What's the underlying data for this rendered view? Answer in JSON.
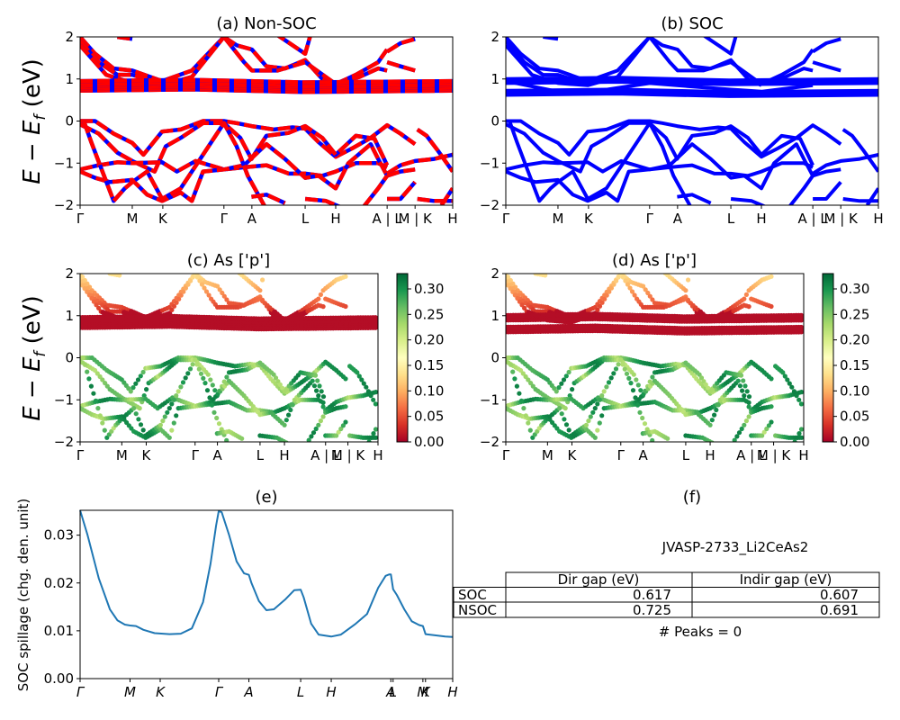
{
  "chart_data": [
    {
      "id": "a",
      "type": "line",
      "title": "(a) Non-SOC",
      "ylabel": "E − E_f (eV)",
      "ylim": [
        -2,
        2
      ],
      "yticks": [
        "2",
        "1",
        "0",
        "−1",
        "−2"
      ],
      "ytick_values": [
        2,
        1,
        0,
        -1,
        -2
      ],
      "xticks": [
        "Γ",
        "M",
        "K",
        "Γ",
        "A",
        "L",
        "H",
        "A | L",
        "M | K",
        "H"
      ],
      "xtick_positions": [
        0,
        0.14,
        0.222,
        0.386,
        0.461,
        0.604,
        0.686,
        0.824,
        0.899,
        1.0
      ],
      "style": "red-blue dashed bands",
      "colors": {
        "primary": "#ff0000",
        "secondary": "#0000ff"
      }
    },
    {
      "id": "b",
      "type": "line",
      "title": "(b) SOC",
      "ylim": [
        -2,
        2
      ],
      "yticks": [
        "2",
        "1",
        "0",
        "−1",
        "−2"
      ],
      "ytick_values": [
        2,
        1,
        0,
        -1,
        -2
      ],
      "xticks": [
        "Γ",
        "M",
        "K",
        "Γ",
        "A",
        "L",
        "H",
        "A | L",
        "M | K",
        "H"
      ],
      "xtick_positions": [
        0,
        0.14,
        0.222,
        0.386,
        0.461,
        0.604,
        0.686,
        0.824,
        0.899,
        1.0
      ],
      "style": "solid blue bands",
      "colors": {
        "primary": "#0000ff"
      }
    },
    {
      "id": "c",
      "type": "scatter",
      "title": "(c)  As ['p']",
      "ylabel": "E − E_f (eV)",
      "ylim": [
        -2,
        2
      ],
      "yticks": [
        "2",
        "1",
        "0",
        "−1",
        "−2"
      ],
      "ytick_values": [
        2,
        1,
        0,
        -1,
        -2
      ],
      "xticks": [
        "Γ",
        "M",
        "K",
        "Γ",
        "A",
        "L",
        "H",
        "A | L",
        "M | K",
        "H"
      ],
      "xtick_positions": [
        0,
        0.14,
        0.222,
        0.386,
        0.461,
        0.604,
        0.686,
        0.824,
        0.899,
        1.0
      ],
      "colorbar": {
        "cmap": "RdYlGn",
        "range": [
          0,
          0.33
        ],
        "ticks": [
          "0.00",
          "0.05",
          "0.10",
          "0.15",
          "0.20",
          "0.25",
          "0.30"
        ],
        "tick_values": [
          0,
          0.05,
          0.1,
          0.15,
          0.2,
          0.25,
          0.3
        ]
      }
    },
    {
      "id": "d",
      "type": "scatter",
      "title": "(d) As ['p']",
      "ylim": [
        -2,
        2
      ],
      "yticks": [
        "2",
        "1",
        "0",
        "−1",
        "−2"
      ],
      "ytick_values": [
        2,
        1,
        0,
        -1,
        -2
      ],
      "xticks": [
        "Γ",
        "M",
        "K",
        "Γ",
        "A",
        "L",
        "H",
        "A | L",
        "M | K",
        "H"
      ],
      "xtick_positions": [
        0,
        0.14,
        0.222,
        0.386,
        0.461,
        0.604,
        0.686,
        0.824,
        0.899,
        1.0
      ],
      "colorbar": {
        "cmap": "RdYlGn",
        "range": [
          0,
          0.33
        ],
        "ticks": [
          "0.00",
          "0.05",
          "0.10",
          "0.15",
          "0.20",
          "0.25",
          "0.30"
        ],
        "tick_values": [
          0,
          0.05,
          0.1,
          0.15,
          0.2,
          0.25,
          0.3
        ]
      }
    },
    {
      "id": "e",
      "type": "line",
      "title": "(e)",
      "ylabel": "SOC spillage (chg. den. unit)",
      "ylim": [
        0,
        0.0352
      ],
      "yticks": [
        "0.00",
        "0.01",
        "0.02",
        "0.03"
      ],
      "ytick_values": [
        0,
        0.01,
        0.02,
        0.03
      ],
      "xticks": [
        "Γ",
        "M",
        "K",
        "Γ",
        "A",
        "L",
        "H",
        "A",
        "L",
        "M",
        "K",
        "H"
      ],
      "xtick_positions": [
        0,
        0.134,
        0.215,
        0.372,
        0.453,
        0.592,
        0.674,
        0.834,
        0.84,
        0.92,
        0.927,
        1.0
      ],
      "color": "#1f77b4",
      "x": [
        0,
        0.02,
        0.05,
        0.08,
        0.1,
        0.12,
        0.134,
        0.15,
        0.17,
        0.2,
        0.24,
        0.27,
        0.3,
        0.33,
        0.35,
        0.365,
        0.372,
        0.38,
        0.4,
        0.42,
        0.44,
        0.453,
        0.46,
        0.48,
        0.5,
        0.52,
        0.55,
        0.575,
        0.592,
        0.6,
        0.62,
        0.64,
        0.674,
        0.7,
        0.74,
        0.77,
        0.8,
        0.82,
        0.83,
        0.834,
        0.84,
        0.85,
        0.87,
        0.89,
        0.91,
        0.92,
        0.927,
        0.95,
        0.98,
        1.0
      ],
      "y": [
        0.0352,
        0.03,
        0.021,
        0.0145,
        0.0122,
        0.0113,
        0.0111,
        0.011,
        0.0102,
        0.0095,
        0.0093,
        0.0094,
        0.0105,
        0.016,
        0.024,
        0.032,
        0.035,
        0.0348,
        0.03,
        0.0245,
        0.022,
        0.0217,
        0.02,
        0.0162,
        0.0143,
        0.0145,
        0.0165,
        0.0185,
        0.0186,
        0.017,
        0.0115,
        0.0092,
        0.0088,
        0.0092,
        0.0115,
        0.0135,
        0.019,
        0.0215,
        0.0218,
        0.0218,
        0.0187,
        0.0175,
        0.0145,
        0.012,
        0.0112,
        0.011,
        0.0093,
        0.0091,
        0.0088,
        0.0087
      ]
    }
  ],
  "panel_f": {
    "title": "(f)",
    "material": "JVASP-2733_Li2CeAs2",
    "table": {
      "columns": [
        "Dir gap (eV)",
        "Indir gap (eV)"
      ],
      "rows": [
        {
          "label": "SOC",
          "dir": "0.617",
          "indir": "0.607"
        },
        {
          "label": "NSOC",
          "dir": "0.725",
          "indir": "0.691"
        }
      ]
    },
    "peaks_text": "# Peaks = 0"
  }
}
